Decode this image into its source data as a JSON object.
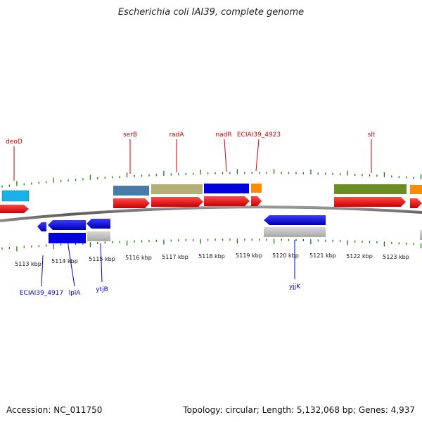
{
  "title": "Escherichia coli IAI39, complete genome",
  "accession": "Accession: NC_011750",
  "summary": "Topology: circular; Length: 5,132,068 bp; Genes: 4,937",
  "colors": {
    "backbone": "#777777",
    "tick": "#1a7a1a",
    "cds_forward": "#ee0000",
    "cds_reverse": "#0000dd",
    "top_label": "#cc0000",
    "bottom_label": "#0000cc"
  },
  "tick_labels": [
    "5113 kbp",
    "5114 kbp",
    "5115 kbp",
    "5116 kbp",
    "5117 kbp",
    "5118 kbp",
    "5119 kbp",
    "5120 kbp",
    "5121 kbp",
    "5122 kbp",
    "5123 kbp"
  ],
  "top_labels": [
    "deoD",
    "serB",
    "radA",
    "nadR",
    "ECIAI39_4923",
    "slt"
  ],
  "bottom_labels": [
    "ECIAI39_4917",
    "lplA",
    "ytjB",
    "yjjK"
  ]
}
